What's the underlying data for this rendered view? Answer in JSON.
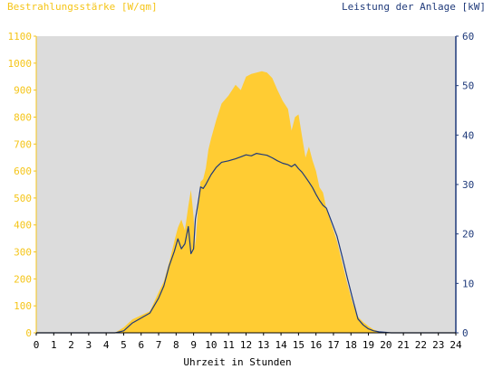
{
  "chart_data": {
    "type": "area",
    "colors": {
      "irradiance": "#ffcc33",
      "power": "#1f3a7a",
      "plot_bg": "#dcdcdc",
      "left_axis_text": "#f5c518",
      "right_axis_text": "#1f3a7a",
      "x_axis_text": "#000000",
      "x_axis_line": "#000000"
    },
    "title_left": "Bestrahlungsstärke [W/qm]",
    "title_right": "Leistung der Anlage [kW]",
    "xlabel": "Uhrzeit in Stunden",
    "xlim": [
      0,
      24
    ],
    "ylim_left": [
      0,
      1100
    ],
    "ylim_right": [
      0,
      60
    ],
    "x_ticks": [
      "0",
      "1",
      "2",
      "3",
      "4",
      "5",
      "6",
      "7",
      "8",
      "9",
      "10",
      "11",
      "12",
      "13",
      "14",
      "15",
      "16",
      "17",
      "18",
      "19",
      "20",
      "21",
      "22",
      "23",
      "24"
    ],
    "y_left_ticks": [
      "0",
      "100",
      "200",
      "300",
      "400",
      "500",
      "600",
      "700",
      "800",
      "900",
      "1000",
      "1100"
    ],
    "y_right_ticks": [
      "0",
      "10",
      "20",
      "30",
      "40",
      "50",
      "60"
    ],
    "series": [
      {
        "name": "Bestrahlungsstärke",
        "axis": "left",
        "style": "area",
        "x": [
          0,
          4.5,
          5,
          5.5,
          6,
          6.5,
          7,
          7.3,
          7.6,
          7.9,
          8.1,
          8.3,
          8.5,
          8.7,
          8.85,
          9,
          9.1,
          9.25,
          9.4,
          9.55,
          9.7,
          9.85,
          10,
          10.3,
          10.6,
          11,
          11.4,
          11.7,
          12,
          12.3,
          12.6,
          12.9,
          13.2,
          13.5,
          13.8,
          14.1,
          14.4,
          14.6,
          14.8,
          15,
          15.2,
          15.4,
          15.6,
          15.8,
          16,
          16.2,
          16.4,
          16.6,
          16.9,
          17.2,
          17.5,
          17.8,
          18.1,
          18.4,
          18.7,
          19,
          19.3,
          19.6,
          20,
          20.3,
          24
        ],
        "y": [
          0,
          0,
          20,
          50,
          65,
          80,
          150,
          190,
          260,
          340,
          390,
          420,
          380,
          470,
          530,
          430,
          320,
          460,
          560,
          570,
          610,
          680,
          720,
          790,
          850,
          880,
          920,
          900,
          950,
          960,
          965,
          970,
          965,
          945,
          900,
          860,
          830,
          750,
          800,
          810,
          730,
          650,
          690,
          640,
          600,
          540,
          520,
          460,
          400,
          340,
          260,
          180,
          110,
          60,
          40,
          25,
          12,
          5,
          2,
          0,
          0
        ]
      },
      {
        "name": "Leistung",
        "axis": "right",
        "style": "line",
        "x": [
          0,
          4.5,
          5,
          5.5,
          6,
          6.5,
          7,
          7.3,
          7.6,
          7.9,
          8.1,
          8.3,
          8.5,
          8.7,
          8.85,
          9,
          9.1,
          9.25,
          9.4,
          9.55,
          9.7,
          9.85,
          10,
          10.3,
          10.6,
          11,
          11.4,
          11.7,
          12,
          12.3,
          12.6,
          12.9,
          13.2,
          13.5,
          13.8,
          14.1,
          14.4,
          14.6,
          14.8,
          15,
          15.2,
          15.4,
          15.6,
          15.8,
          16,
          16.2,
          16.4,
          16.6,
          16.9,
          17.2,
          17.5,
          17.8,
          18.1,
          18.4,
          18.7,
          19,
          19.3,
          19.6,
          20,
          20.3,
          24
        ],
        "y": [
          0,
          0,
          0.4,
          2,
          3,
          4,
          7,
          9.5,
          13.5,
          16.5,
          19,
          17,
          18,
          21.5,
          16,
          17,
          23,
          26,
          29.5,
          29.2,
          30,
          31,
          32,
          33.5,
          34.5,
          34.8,
          35.2,
          35.6,
          36,
          35.8,
          36.3,
          36.1,
          35.9,
          35.4,
          34.8,
          34.3,
          34.0,
          33.6,
          34.1,
          33.2,
          32.5,
          31.5,
          30.5,
          29.4,
          28,
          26.8,
          25.8,
          25.2,
          22.4,
          19.6,
          15.4,
          11,
          6.8,
          2.8,
          1.6,
          0.8,
          0.4,
          0.2,
          0.1,
          0,
          0
        ]
      }
    ]
  }
}
